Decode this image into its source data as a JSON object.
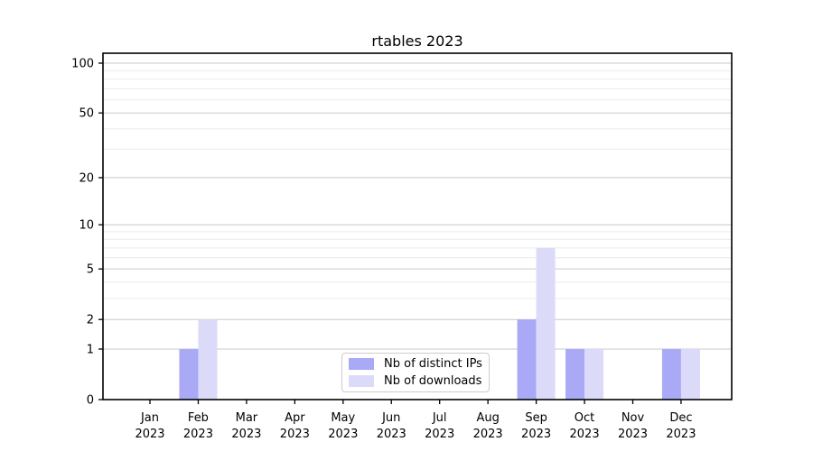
{
  "chart_data": {
    "type": "bar",
    "title": "rtables 2023",
    "categories": [
      "Jan",
      "Feb",
      "Mar",
      "Apr",
      "May",
      "Jun",
      "Jul",
      "Aug",
      "Sep",
      "Oct",
      "Nov",
      "Dec"
    ],
    "category_year": "2023",
    "series": [
      {
        "name": "Nb of distinct IPs",
        "color": "#a9a9f6",
        "values": [
          0,
          1,
          0,
          0,
          0,
          0,
          0,
          0,
          2,
          1,
          0,
          1
        ]
      },
      {
        "name": "Nb of downloads",
        "color": "#dbdbf9",
        "values": [
          0,
          2,
          0,
          0,
          0,
          0,
          0,
          0,
          7,
          1,
          0,
          1
        ]
      }
    ],
    "yscale": "log1p",
    "ylim": [
      0,
      113
    ],
    "yticks": [
      0,
      1,
      2,
      5,
      10,
      20,
      50,
      100
    ],
    "minor_yticks": [
      3,
      4,
      6,
      7,
      8,
      9,
      30,
      40,
      60,
      70,
      80,
      90
    ],
    "grid": true,
    "legend_position": "lower center",
    "colors": {
      "major_grid": "#c9c9c9",
      "minor_grid": "#ececec",
      "spine": "#000000",
      "text": "#000000"
    }
  }
}
